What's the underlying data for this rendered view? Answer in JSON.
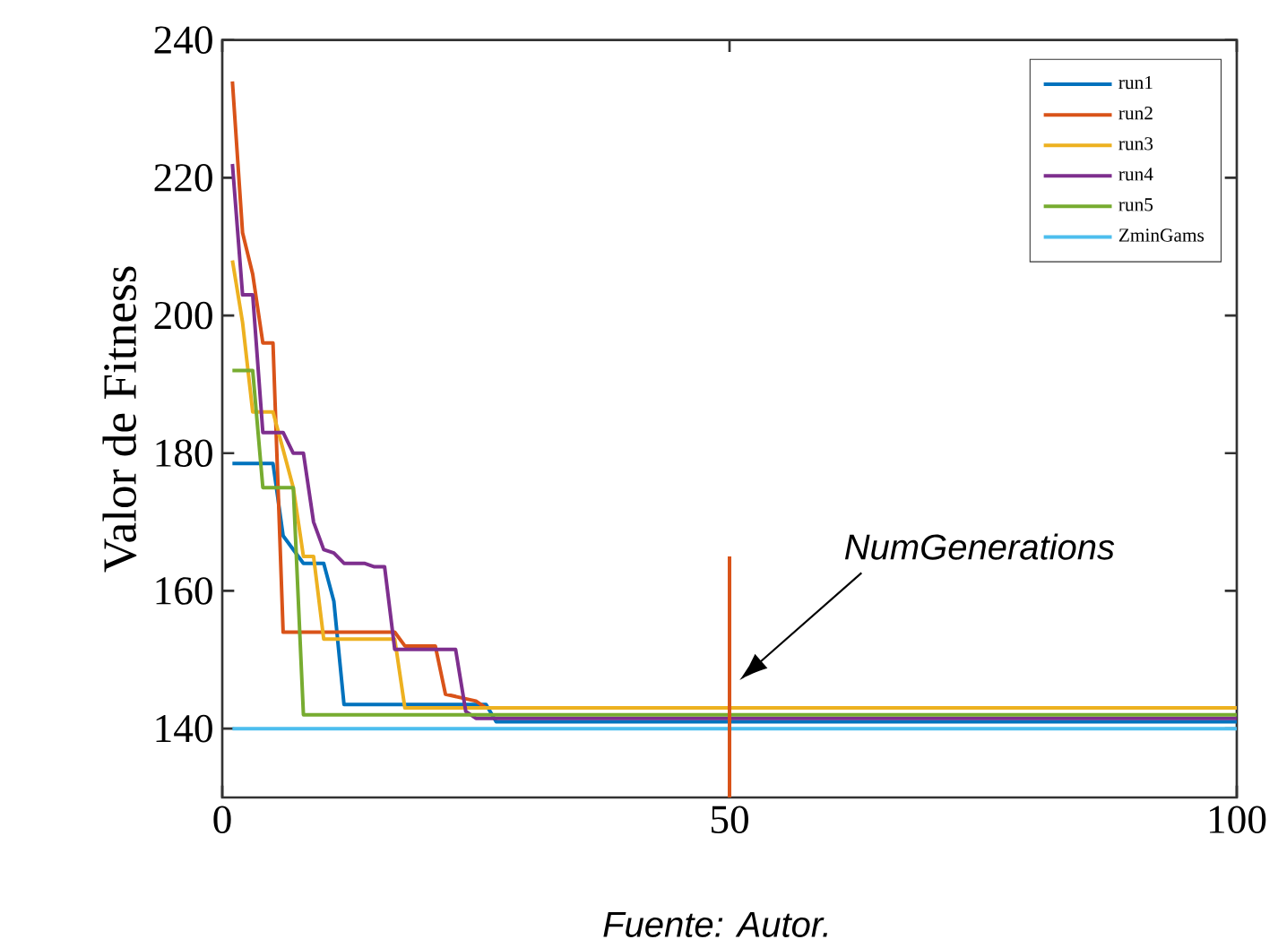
{
  "chart_data": {
    "type": "line",
    "ylabel": "Valor de Fitness",
    "xlim": [
      0,
      100
    ],
    "xticks": [
      0,
      50,
      100
    ],
    "ylim": [
      130,
      240
    ],
    "yticks": [
      140,
      160,
      180,
      200,
      220,
      240
    ],
    "legend": "top right",
    "grid": false,
    "series": [
      {
        "name": "run1",
        "color": "#0072bd",
        "x": [
          1,
          5,
          6,
          7,
          8,
          10,
          11,
          12,
          26,
          27,
          100
        ],
        "values": [
          178.5,
          178.5,
          168,
          166,
          164,
          164,
          158.5,
          143.5,
          143.5,
          141,
          141
        ]
      },
      {
        "name": "run2",
        "color": "#d95319",
        "x": [
          1,
          2,
          3,
          4,
          5,
          6,
          17,
          18,
          21,
          22,
          25,
          26,
          100
        ],
        "values": [
          234,
          212,
          206,
          196,
          196,
          154,
          154,
          152,
          152,
          145,
          144,
          143,
          143
        ]
      },
      {
        "name": "run3",
        "color": "#edb120",
        "x": [
          1,
          2,
          3,
          5,
          7,
          8,
          9,
          10,
          17,
          18,
          100
        ],
        "values": [
          208,
          199,
          186,
          186,
          175,
          165,
          165,
          153,
          153,
          143,
          143
        ]
      },
      {
        "name": "run4",
        "color": "#7e2f8e",
        "x": [
          1,
          2,
          3,
          4,
          6,
          7,
          8,
          9,
          10,
          11,
          12,
          14,
          15,
          16,
          17,
          23,
          24,
          25,
          100
        ],
        "values": [
          222,
          203,
          203,
          183,
          183,
          180,
          180,
          170,
          166,
          165.5,
          164,
          164,
          163.5,
          163.5,
          151.5,
          151.5,
          142.5,
          141.5,
          141.5
        ]
      },
      {
        "name": "run5",
        "color": "#77ac30",
        "x": [
          1,
          3,
          4,
          7,
          8,
          100
        ],
        "values": [
          192,
          192,
          175,
          175,
          142,
          142
        ]
      },
      {
        "name": "ZminGams",
        "color": "#4dbeee",
        "x": [
          1,
          100
        ],
        "values": [
          140,
          140
        ]
      },
      {
        "color": "#d95319",
        "x": [
          50,
          50
        ],
        "values": [
          165,
          130
        ]
      }
    ],
    "annotations": [
      "NumGenerations",
      "Fuente: Autor."
    ]
  }
}
